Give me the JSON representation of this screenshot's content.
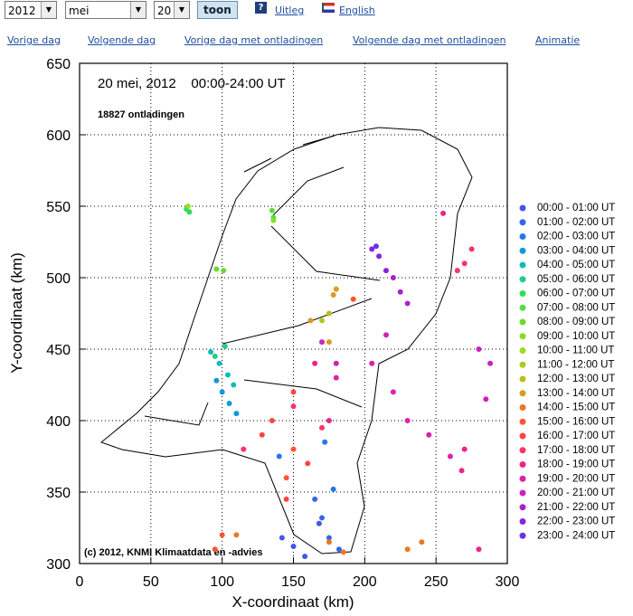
{
  "controls": {
    "year": "2012",
    "month": "mei",
    "day": "20",
    "button": "toon",
    "help": "Uitleg",
    "language": "English"
  },
  "links": [
    "Vorige dag",
    "Volgende dag",
    "Vorige dag met ontladingen",
    "Volgende dag met ontladingen",
    "Animatie"
  ],
  "chart_data": {
    "type": "scatter",
    "title": "20 mei, 2012    00:00-24:00 UT",
    "subtitle": "18827 ontladingen",
    "credit": "(c) 2012, KNMI Klimaatdata en -advies",
    "x_label": "X-coordinaat (km)",
    "y_label": "Y-coordinaat (km)",
    "xlim": [
      0,
      300
    ],
    "ylim": [
      300,
      650
    ],
    "xticks": [
      0,
      50,
      100,
      150,
      200,
      250,
      300
    ],
    "yticks": [
      300,
      350,
      400,
      450,
      500,
      550,
      600,
      650
    ],
    "grid": true,
    "series": [
      {
        "name": "00:00 - 01:00 UT",
        "color": "#4455ee",
        "x": [
          150,
          158,
          142,
          168
        ],
        "y": [
          312,
          305,
          318,
          328
        ]
      },
      {
        "name": "01:00 - 02:00 UT",
        "color": "#3366ee",
        "x": [
          170,
          175,
          165,
          182
        ],
        "y": [
          332,
          318,
          345,
          310
        ]
      },
      {
        "name": "02:00 - 03:00 UT",
        "color": "#2277ee",
        "x": [
          172,
          140,
          178
        ],
        "y": [
          385,
          375,
          352
        ]
      },
      {
        "name": "03:00 - 04:00 UT",
        "color": "#1199dd",
        "x": [
          100,
          105,
          96,
          110
        ],
        "y": [
          420,
          412,
          428,
          405
        ]
      },
      {
        "name": "04:00 - 05:00 UT",
        "color": "#11bbbb",
        "x": [
          98,
          104,
          92,
          108
        ],
        "y": [
          440,
          432,
          448,
          425
        ]
      },
      {
        "name": "05:00 - 06:00 UT",
        "color": "#22cc88",
        "x": [
          102,
          95
        ],
        "y": [
          452,
          445
        ]
      },
      {
        "name": "06:00 - 07:00 UT",
        "color": "#33dd55",
        "x": [
          75,
          77
        ],
        "y": [
          548,
          546
        ]
      },
      {
        "name": "07:00 - 08:00 UT",
        "color": "#55dd44",
        "x": [
          135,
          136
        ],
        "y": [
          547,
          542
        ]
      },
      {
        "name": "08:00 - 09:00 UT",
        "color": "#66dd33",
        "x": [
          96,
          101
        ],
        "y": [
          506,
          505
        ]
      },
      {
        "name": "09:00 - 10:00 UT",
        "color": "#88dd22",
        "x": [
          136
        ],
        "y": [
          540
        ]
      },
      {
        "name": "10:00 - 11:00 UT",
        "color": "#99dd22",
        "x": [
          76
        ],
        "y": [
          550
        ]
      },
      {
        "name": "11:00 - 12:00 UT",
        "color": "#aacc22",
        "x": [
          170
        ],
        "y": [
          470
        ]
      },
      {
        "name": "12:00 - 13:00 UT",
        "color": "#bbbb22",
        "x": [
          175
        ],
        "y": [
          475
        ]
      },
      {
        "name": "13:00 - 14:00 UT",
        "color": "#dd9922",
        "x": [
          180,
          178,
          162,
          175
        ],
        "y": [
          492,
          488,
          470,
          455
        ]
      },
      {
        "name": "14:00 - 15:00 UT",
        "color": "#ee7722",
        "x": [
          175,
          185,
          240,
          230,
          110
        ],
        "y": [
          315,
          308,
          315,
          310,
          320
        ]
      },
      {
        "name": "15:00 - 16:00 UT",
        "color": "#ff5533",
        "x": [
          100,
          95,
          150,
          145,
          192
        ],
        "y": [
          320,
          310,
          380,
          360,
          485
        ]
      },
      {
        "name": "16:00 - 17:00 UT",
        "color": "#ff4444",
        "x": [
          160,
          135,
          150,
          128,
          145
        ],
        "y": [
          370,
          400,
          420,
          390,
          345
        ]
      },
      {
        "name": "17:00 - 18:00 UT",
        "color": "#ff3366",
        "x": [
          270,
          265,
          275,
          150,
          170,
          115
        ],
        "y": [
          510,
          505,
          520,
          410,
          395,
          380
        ]
      },
      {
        "name": "18:00 - 19:00 UT",
        "color": "#ee2288",
        "x": [
          175,
          165,
          270,
          268,
          255,
          280
        ],
        "y": [
          400,
          440,
          380,
          365,
          545,
          310
        ]
      },
      {
        "name": "19:00 - 20:00 UT",
        "color": "#dd22aa",
        "x": [
          220,
          230,
          245,
          260,
          205,
          180
        ],
        "y": [
          420,
          400,
          390,
          375,
          440,
          430
        ]
      },
      {
        "name": "20:00 - 21:00 UT",
        "color": "#cc22bb",
        "x": [
          170,
          180,
          215,
          280,
          288,
          285
        ],
        "y": [
          455,
          440,
          460,
          450,
          440,
          415
        ]
      },
      {
        "name": "21:00 - 22:00 UT",
        "color": "#aa22cc",
        "x": [
          225,
          220,
          230
        ],
        "y": [
          490,
          500,
          482
        ]
      },
      {
        "name": "22:00 - 23:00 UT",
        "color": "#8822dd",
        "x": [
          210,
          215,
          205
        ],
        "y": [
          515,
          505,
          520
        ]
      },
      {
        "name": "23:00 - 24:00 UT",
        "color": "#6633ee",
        "x": [
          208
        ],
        "y": [
          522
        ]
      }
    ]
  }
}
